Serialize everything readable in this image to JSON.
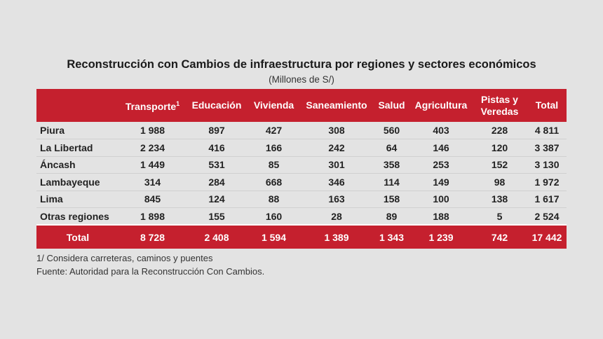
{
  "title": "Reconstrucción con Cambios de infraestructura por regiones y sectores económicos",
  "subtitle": "(Millones de S/)",
  "table": {
    "columns": [
      "Transporte",
      "Educación",
      "Vivienda",
      "Saneamiento",
      "Salud",
      "Agricultura",
      "Pistas y Veredas",
      "Total"
    ],
    "column_footnote_mark": "1",
    "rows": [
      [
        "Piura",
        "1 988",
        "897",
        "427",
        "308",
        "560",
        "403",
        "228",
        "4 811"
      ],
      [
        "La Libertad",
        "2 234",
        "416",
        "166",
        "242",
        "64",
        "146",
        "120",
        "3 387"
      ],
      [
        "Áncash",
        "1 449",
        "531",
        "85",
        "301",
        "358",
        "253",
        "152",
        "3 130"
      ],
      [
        "Lambayeque",
        "314",
        "284",
        "668",
        "346",
        "114",
        "149",
        "98",
        "1 972"
      ],
      [
        "Lima",
        "845",
        "124",
        "88",
        "163",
        "158",
        "100",
        "138",
        "1 617"
      ],
      [
        "Otras regiones",
        "1 898",
        "155",
        "160",
        "28",
        "89",
        "188",
        "5",
        "2 524"
      ]
    ],
    "total": [
      "Total",
      "8 728",
      "2 408",
      "1 594",
      "1 389",
      "1 343",
      "1 239",
      "742",
      "17 442"
    ]
  },
  "footnotes": [
    "1/ Considera carreteras, caminos y puentes",
    "Fuente: Autoridad para la Reconstrucción Con Cambios."
  ]
}
